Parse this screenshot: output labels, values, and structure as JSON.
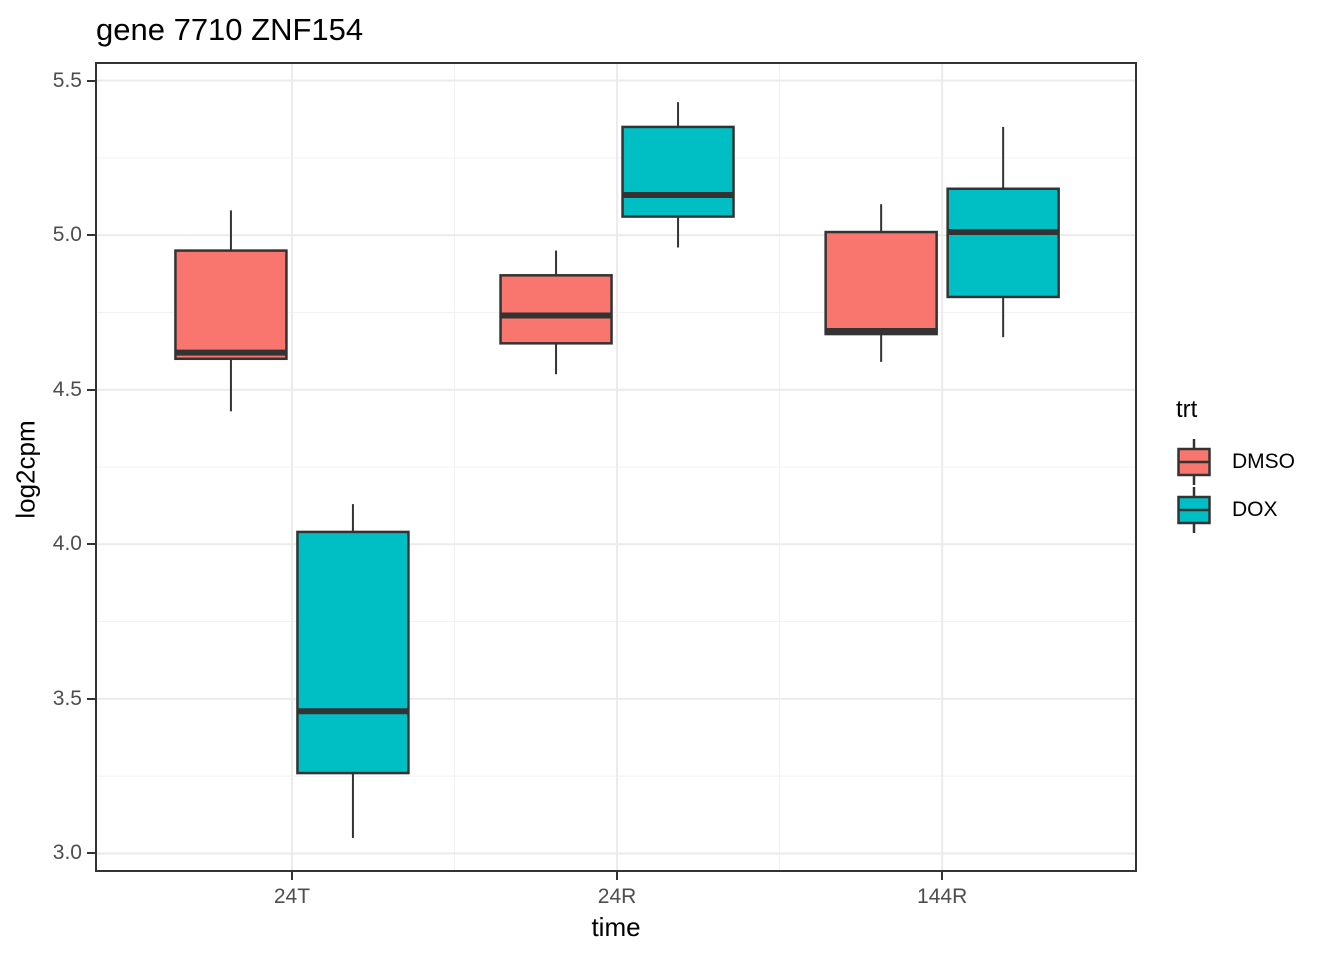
{
  "title": "gene 7710 ZNF154",
  "axes": {
    "x_label": "time",
    "y_label": "log2cpm"
  },
  "legend": {
    "title": "trt",
    "items": [
      {
        "label": "DMSO",
        "color": "#F8766D"
      },
      {
        "label": "DOX",
        "color": "#00BFC4"
      }
    ]
  },
  "colors": {
    "box_outline": "#333333",
    "panel_border": "#333333",
    "grid_major": "#EBEBEB",
    "grid_minor": "#F1F1F1",
    "tick_mark": "#333333",
    "tick_text": "#4D4D4D"
  },
  "chart_data": {
    "type": "boxplot",
    "title": "gene 7710 ZNF154",
    "xlabel": "time",
    "ylabel": "log2cpm",
    "categories": [
      "24T",
      "24R",
      "144R"
    ],
    "ylim": [
      2.94,
      5.56
    ],
    "y_ticks": [
      {
        "value": 3.0,
        "label": "3.0"
      },
      {
        "value": 3.5,
        "label": "3.5"
      },
      {
        "value": 4.0,
        "label": "4.0"
      },
      {
        "value": 4.5,
        "label": "4.5"
      },
      {
        "value": 5.0,
        "label": "5.0"
      },
      {
        "value": 5.5,
        "label": "5.5"
      }
    ],
    "y_minor_ticks": [
      3.25,
      3.75,
      4.25,
      4.75,
      5.25
    ],
    "grid": true,
    "legend_position": "right",
    "legend_title": "trt",
    "series": [
      {
        "name": "DMSO",
        "color": "#F8766D",
        "boxes": [
          {
            "category": "24T",
            "whisker_low": 4.43,
            "q1": 4.6,
            "median": 4.62,
            "q3": 4.95,
            "whisker_high": 5.08
          },
          {
            "category": "24R",
            "whisker_low": 4.55,
            "q1": 4.65,
            "median": 4.74,
            "q3": 4.87,
            "whisker_high": 4.95
          },
          {
            "category": "144R",
            "whisker_low": 4.59,
            "q1": 4.68,
            "median": 4.69,
            "q3": 5.01,
            "whisker_high": 5.1
          }
        ]
      },
      {
        "name": "DOX",
        "color": "#00BFC4",
        "boxes": [
          {
            "category": "24T",
            "whisker_low": 3.05,
            "q1": 3.26,
            "median": 3.46,
            "q3": 4.04,
            "whisker_high": 4.13
          },
          {
            "category": "24R",
            "whisker_low": 4.96,
            "q1": 5.06,
            "median": 5.13,
            "q3": 5.35,
            "whisker_high": 5.43
          },
          {
            "category": "144R",
            "whisker_low": 4.67,
            "q1": 4.8,
            "median": 5.01,
            "q3": 5.15,
            "whisker_high": 5.35
          }
        ]
      }
    ]
  }
}
